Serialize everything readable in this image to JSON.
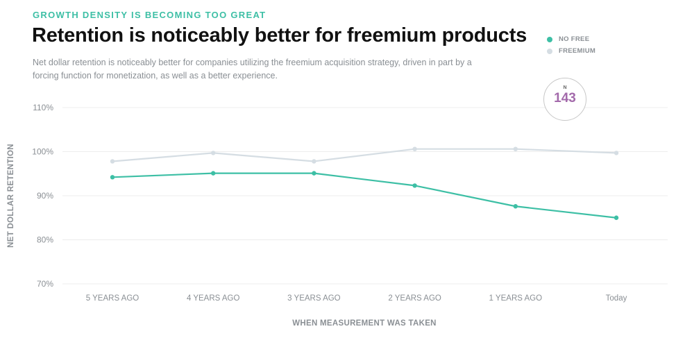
{
  "header": {
    "eyebrow": "GROWTH DENSITY IS BECOMING TOO GREAT",
    "title": "Retention is noticeably better for freemium products",
    "subtitle": "Net dollar retention is noticeably better for companies utilizing the freemium acquisition strategy, driven in part by a forcing function for monetization, as well as a better experience."
  },
  "legend": {
    "items": [
      {
        "label": "NO FREE",
        "color": "#3dbfa5"
      },
      {
        "label": "FREEMIUM",
        "color": "#d5dde3"
      }
    ]
  },
  "badge": {
    "label": "N",
    "value": "143",
    "color": "#a36aab"
  },
  "chart_data": {
    "type": "line",
    "title": "Retention is noticeably better for freemium products",
    "xlabel": "WHEN MEASUREMENT WAS TAKEN",
    "ylabel": "NET DOLLAR RETENTION",
    "categories": [
      "5 YEARS AGO",
      "4 YEARS AGO",
      "3 YEARS AGO",
      "2 YEARS AGO",
      "1 YEARS AGO",
      "Today"
    ],
    "ylim": [
      70,
      110
    ],
    "yticks": [
      110,
      100,
      90,
      80,
      70
    ],
    "ytick_labels": [
      "110%",
      "100%",
      "90%",
      "80%",
      "70%"
    ],
    "grid": true,
    "legend_position": "top-right",
    "series": [
      {
        "name": "NO FREE",
        "color": "#3dbfa5",
        "values": [
          94.2,
          95.1,
          95.1,
          92.3,
          87.6,
          85.0
        ]
      },
      {
        "name": "FREEMIUM",
        "color": "#d5dde3",
        "values": [
          97.8,
          99.7,
          97.8,
          100.6,
          100.6,
          99.7
        ]
      }
    ]
  }
}
